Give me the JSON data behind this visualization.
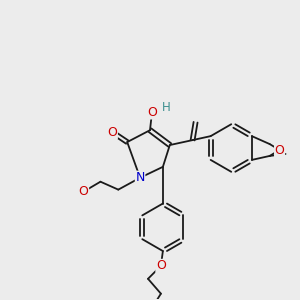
{
  "background_color": "#ececec",
  "bond_color": "#1a1a1a",
  "atom_colors": {
    "O": "#cc0000",
    "N": "#0000cc",
    "H": "#3d8f8f"
  },
  "figsize": [
    3.0,
    3.0
  ],
  "dpi": 100
}
